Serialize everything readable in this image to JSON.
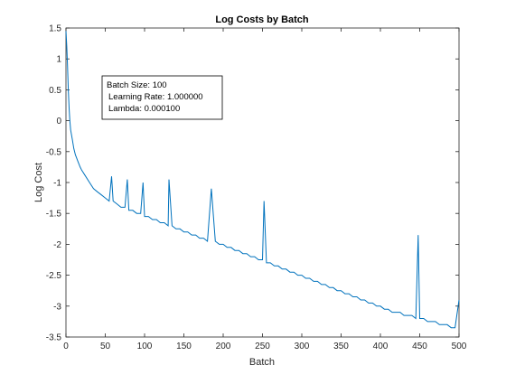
{
  "chart_data": {
    "type": "line",
    "title": "Log Costs by Batch",
    "xlabel": "Batch",
    "ylabel": "Log Cost",
    "xlim": [
      0,
      500
    ],
    "ylim": [
      -3.5,
      1.5
    ],
    "x_ticks": [
      "0",
      "50",
      "100",
      "150",
      "200",
      "250",
      "300",
      "350",
      "400",
      "450",
      "500"
    ],
    "y_ticks": [
      "-3.5",
      "-3",
      "-2.5",
      "-2",
      "-1.5",
      "-1",
      "-0.5",
      "0",
      "0.5",
      "1",
      "1.5"
    ],
    "grid": false,
    "line_color": "#0072BD",
    "annotation": {
      "lines": [
        "Batch Size: 100",
        "Learning Rate: 1.000000",
        "Lambda: 0.000100"
      ]
    },
    "series": [
      {
        "x": [
          0,
          1,
          2,
          3,
          4,
          5,
          6,
          8,
          10,
          12,
          15,
          18,
          20,
          25,
          30,
          35,
          40,
          45,
          50,
          55,
          58,
          60,
          65,
          70,
          75,
          78,
          80,
          85,
          90,
          95,
          98,
          100,
          105,
          110,
          115,
          120,
          125,
          130,
          131,
          135,
          140,
          145,
          150,
          155,
          160,
          165,
          170,
          175,
          180,
          185,
          190,
          195,
          200,
          205,
          210,
          215,
          220,
          225,
          230,
          235,
          240,
          245,
          250,
          252,
          255,
          260,
          265,
          270,
          275,
          280,
          285,
          290,
          295,
          300,
          305,
          310,
          315,
          320,
          325,
          330,
          335,
          340,
          345,
          350,
          355,
          360,
          365,
          370,
          375,
          380,
          385,
          390,
          395,
          400,
          405,
          410,
          415,
          420,
          425,
          430,
          435,
          440,
          445,
          448,
          450,
          455,
          460,
          465,
          470,
          475,
          480,
          485,
          490,
          495,
          500
        ],
        "y": [
          1.45,
          1.2,
          0.9,
          0.5,
          0.2,
          0.0,
          -0.15,
          -0.3,
          -0.45,
          -0.55,
          -0.65,
          -0.75,
          -0.8,
          -0.9,
          -1.0,
          -1.1,
          -1.15,
          -1.2,
          -1.25,
          -1.3,
          -0.9,
          -1.3,
          -1.35,
          -1.4,
          -1.4,
          -0.95,
          -1.45,
          -1.45,
          -1.5,
          -1.5,
          -1.0,
          -1.55,
          -1.55,
          -1.6,
          -1.6,
          -1.65,
          -1.65,
          -1.7,
          -0.95,
          -1.7,
          -1.75,
          -1.75,
          -1.8,
          -1.8,
          -1.85,
          -1.85,
          -1.9,
          -1.9,
          -1.95,
          -1.1,
          -1.95,
          -2.0,
          -2.0,
          -2.05,
          -2.05,
          -2.1,
          -2.1,
          -2.15,
          -2.15,
          -2.2,
          -2.2,
          -2.25,
          -2.25,
          -1.3,
          -2.3,
          -2.3,
          -2.35,
          -2.35,
          -2.4,
          -2.4,
          -2.45,
          -2.45,
          -2.5,
          -2.5,
          -2.55,
          -2.55,
          -2.6,
          -2.6,
          -2.65,
          -2.65,
          -2.7,
          -2.7,
          -2.75,
          -2.75,
          -2.8,
          -2.8,
          -2.85,
          -2.85,
          -2.9,
          -2.9,
          -2.95,
          -2.95,
          -3.0,
          -3.0,
          -3.05,
          -3.05,
          -3.1,
          -3.1,
          -3.1,
          -3.15,
          -3.15,
          -3.15,
          -3.2,
          -1.85,
          -3.2,
          -3.2,
          -3.25,
          -3.25,
          -3.25,
          -3.3,
          -3.3,
          -3.3,
          -3.35,
          -3.35,
          -2.9
        ]
      }
    ]
  }
}
